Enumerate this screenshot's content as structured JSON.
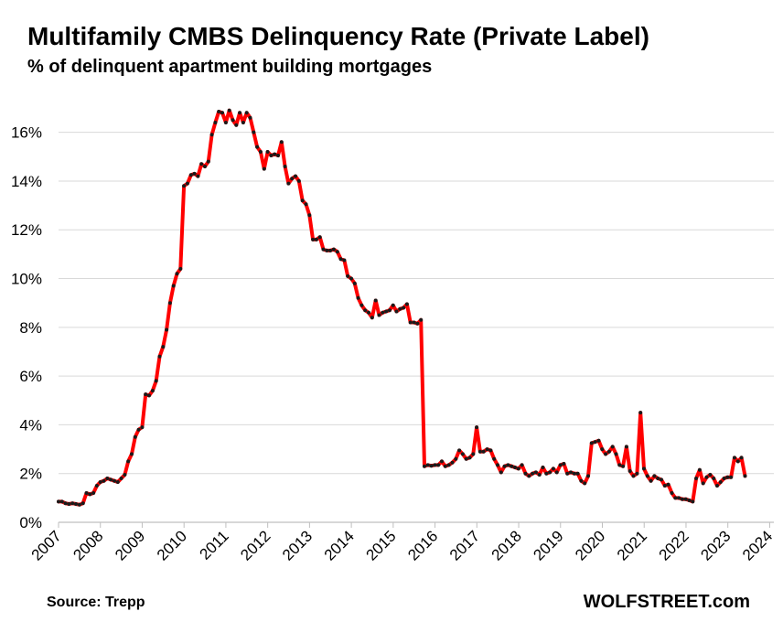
{
  "title": "Multifamily CMBS Delinquency Rate (Private Label)",
  "subtitle": "% of delinquent apartment building mortgages",
  "source": "Source: Trepp",
  "brand": "WOLFSTREET.com",
  "colors": {
    "line": "#ff0000",
    "marker": "#1a1a1a",
    "grid": "#d9d9d9",
    "axis": "#bfbfbf"
  },
  "chart_data": {
    "type": "line",
    "title": "Multifamily CMBS Delinquency Rate (Private Label)",
    "ylabel": "% of delinquent apartment building mortgages",
    "xlabel": "",
    "xlim": [
      2007,
      2024.1
    ],
    "ylim": [
      0,
      17
    ],
    "grid": true,
    "x_ticks": [
      "2007",
      "2008",
      "2009",
      "2010",
      "2011",
      "2012",
      "2013",
      "2014",
      "2015",
      "2016",
      "2017",
      "2018",
      "2019",
      "2020",
      "2021",
      "2022",
      "2023",
      "2024"
    ],
    "y_ticks": [
      {
        "value": 0,
        "label": "0%"
      },
      {
        "value": 2,
        "label": "2%"
      },
      {
        "value": 4,
        "label": "4%"
      },
      {
        "value": 6,
        "label": "6%"
      },
      {
        "value": 8,
        "label": "8%"
      },
      {
        "value": 10,
        "label": "10%"
      },
      {
        "value": 12,
        "label": "12%"
      },
      {
        "value": 14,
        "label": "14%"
      },
      {
        "value": 16,
        "label": "16%"
      }
    ],
    "series": [
      {
        "name": "Multifamily CMBS Delinquency Rate",
        "start_year": 2007.0,
        "step": 0.0833,
        "values": [
          0.85,
          0.85,
          0.78,
          0.75,
          0.78,
          0.75,
          0.72,
          0.78,
          1.2,
          1.15,
          1.2,
          1.5,
          1.65,
          1.7,
          1.8,
          1.75,
          1.7,
          1.65,
          1.8,
          1.95,
          2.5,
          2.8,
          3.5,
          3.8,
          3.9,
          5.25,
          5.2,
          5.4,
          5.8,
          6.8,
          7.2,
          7.9,
          9.0,
          9.7,
          10.2,
          10.4,
          13.8,
          13.9,
          14.25,
          14.3,
          14.2,
          14.7,
          14.6,
          14.8,
          15.9,
          16.4,
          16.85,
          16.8,
          16.4,
          16.9,
          16.5,
          16.3,
          16.8,
          16.4,
          16.8,
          16.6,
          16.0,
          15.4,
          15.2,
          14.5,
          15.2,
          15.05,
          15.1,
          15.05,
          15.6,
          14.6,
          13.9,
          14.1,
          14.2,
          14.0,
          13.2,
          13.05,
          12.6,
          11.6,
          11.6,
          11.7,
          11.2,
          11.15,
          11.15,
          11.2,
          11.1,
          10.8,
          10.75,
          10.1,
          10.0,
          9.8,
          9.2,
          8.9,
          8.7,
          8.6,
          8.4,
          9.1,
          8.5,
          8.6,
          8.65,
          8.7,
          8.9,
          8.65,
          8.75,
          8.8,
          8.95,
          8.2,
          8.2,
          8.15,
          8.3,
          2.3,
          2.35,
          2.32,
          2.35,
          2.35,
          2.5,
          2.3,
          2.35,
          2.45,
          2.6,
          2.95,
          2.8,
          2.6,
          2.65,
          2.8,
          3.9,
          2.9,
          2.9,
          3.0,
          2.95,
          2.6,
          2.35,
          2.05,
          2.3,
          2.35,
          2.3,
          2.25,
          2.2,
          2.35,
          2.0,
          1.9,
          2.0,
          2.05,
          1.95,
          2.25,
          2.0,
          2.05,
          2.2,
          2.05,
          2.35,
          2.4,
          2.0,
          2.05,
          2.0,
          2.0,
          1.7,
          1.6,
          1.9,
          3.25,
          3.3,
          3.35,
          3.0,
          2.8,
          2.9,
          3.1,
          2.8,
          2.35,
          2.3,
          3.1,
          2.1,
          1.9,
          2.0,
          4.5,
          2.2,
          1.9,
          1.7,
          1.9,
          1.8,
          1.75,
          1.5,
          1.55,
          1.2,
          1.0,
          1.0,
          0.95,
          0.95,
          0.9,
          0.85,
          1.8,
          2.15,
          1.6,
          1.85,
          1.95,
          1.8,
          1.5,
          1.65,
          1.8,
          1.85,
          1.85,
          2.65,
          2.5,
          2.65,
          1.9
        ]
      }
    ]
  }
}
